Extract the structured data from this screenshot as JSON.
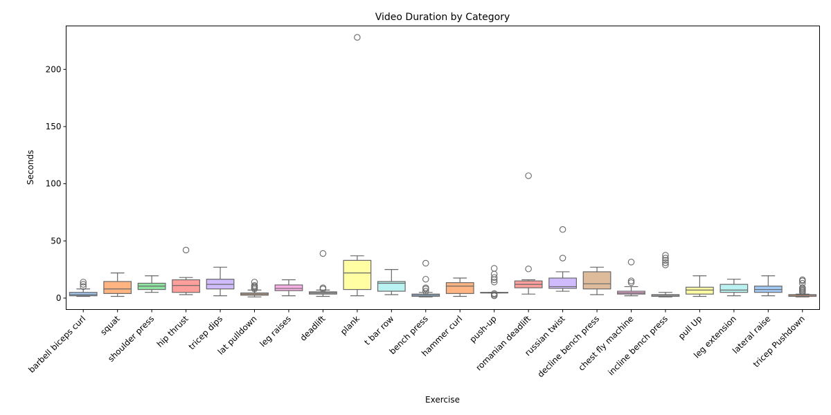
{
  "chart_data": {
    "type": "box",
    "title": "Video Duration by Category",
    "xlabel": "Exercise",
    "ylabel": "Seconds",
    "ylim": [
      -10,
      238
    ],
    "yticks": [
      0,
      50,
      100,
      150,
      200
    ],
    "grid": false,
    "legend": "none",
    "categories": [
      "barbell biceps curl",
      "squat",
      "shoulder press",
      "hip thrust",
      "tricep dips",
      "lat pulldown",
      "leg raises",
      "deadlift",
      "plank",
      "t bar row",
      "bench press",
      "hammer curl",
      "push-up",
      "romanian deadlift",
      "russian twist",
      "decline bench press",
      "chest fly machine",
      "incline bench press",
      "pull Up",
      "leg extension",
      "lateral raise",
      "tricep Pushdown"
    ],
    "colors": [
      "#a1c9f4",
      "#ffb482",
      "#8de5a1",
      "#ff9f9b",
      "#d0bbff",
      "#debb9b",
      "#fab0e4",
      "#cfcfcf",
      "#fffea3",
      "#b9f2f0",
      "#a1c9f4",
      "#ffb482",
      "#8de5a1",
      "#ff9f9b",
      "#d0bbff",
      "#debb9b",
      "#fab0e4",
      "#cfcfcf",
      "#fffea3",
      "#b9f2f0",
      "#a1c9f4",
      "#ffb482"
    ],
    "boxes": [
      {
        "whisker_low": 1.5,
        "q1": 2,
        "median": 3,
        "q3": 5,
        "whisker_high": 8,
        "outliers": [
          10,
          12,
          14
        ]
      },
      {
        "whisker_low": 1.5,
        "q1": 4,
        "median": 8,
        "q3": 14.5,
        "whisker_high": 22,
        "outliers": []
      },
      {
        "whisker_low": 5,
        "q1": 7.5,
        "median": 10.5,
        "q3": 13,
        "whisker_high": 19.5,
        "outliers": []
      },
      {
        "whisker_low": 3,
        "q1": 5,
        "median": 11,
        "q3": 16,
        "whisker_high": 18,
        "outliers": [
          42
        ]
      },
      {
        "whisker_low": 2,
        "q1": 8,
        "median": 12,
        "q3": 16.5,
        "whisker_high": 27,
        "outliers": []
      },
      {
        "whisker_low": 1,
        "q1": 2.5,
        "median": 3.5,
        "q3": 4.5,
        "whisker_high": 7,
        "outliers": [
          8,
          9,
          10,
          11,
          14
        ]
      },
      {
        "whisker_low": 2,
        "q1": 6.5,
        "median": 8.5,
        "q3": 11.5,
        "whisker_high": 16,
        "outliers": []
      },
      {
        "whisker_low": 1.5,
        "q1": 3.5,
        "median": 4.5,
        "q3": 5.5,
        "whisker_high": 7,
        "outliers": [
          8,
          9,
          39
        ]
      },
      {
        "whisker_low": 2,
        "q1": 7.5,
        "median": 22,
        "q3": 33,
        "whisker_high": 37,
        "outliers": [
          228
        ]
      },
      {
        "whisker_low": 3,
        "q1": 6,
        "median": 13,
        "q3": 14.5,
        "whisker_high": 25,
        "outliers": []
      },
      {
        "whisker_low": 1,
        "q1": 1.5,
        "median": 2.5,
        "q3": 3.5,
        "whisker_high": 5,
        "outliers": [
          6,
          8,
          9,
          16.5,
          30.5
        ]
      },
      {
        "whisker_low": 1.5,
        "q1": 4,
        "median": 10.5,
        "q3": 13.5,
        "whisker_high": 17.5,
        "outliers": []
      },
      {
        "whisker_low": 4.5,
        "q1": 4.5,
        "median": 4.5,
        "q3": 5,
        "whisker_high": 5,
        "outliers": [
          2,
          3,
          4,
          14,
          16,
          18,
          21,
          26
        ]
      },
      {
        "whisker_low": 3.5,
        "q1": 9,
        "median": 12,
        "q3": 15,
        "whisker_high": 16,
        "outliers": [
          25.5,
          107
        ]
      },
      {
        "whisker_low": 6,
        "q1": 8.5,
        "median": 10,
        "q3": 17.5,
        "whisker_high": 23,
        "outliers": [
          35,
          60
        ]
      },
      {
        "whisker_low": 3,
        "q1": 8,
        "median": 12.5,
        "q3": 23,
        "whisker_high": 27,
        "outliers": []
      },
      {
        "whisker_low": 2,
        "q1": 3.5,
        "median": 4.5,
        "q3": 6,
        "whisker_high": 10,
        "outliers": [
          13.5,
          15,
          31.5
        ]
      },
      {
        "whisker_low": 1,
        "q1": 1.5,
        "median": 2.5,
        "q3": 3,
        "whisker_high": 5,
        "outliers": [
          29,
          31,
          33,
          35,
          37.5
        ]
      },
      {
        "whisker_low": 1.5,
        "q1": 3.5,
        "median": 7,
        "q3": 9.5,
        "whisker_high": 19.5,
        "outliers": []
      },
      {
        "whisker_low": 2,
        "q1": 5,
        "median": 7,
        "q3": 12,
        "whisker_high": 16.5,
        "outliers": []
      },
      {
        "whisker_low": 2,
        "q1": 5,
        "median": 7.5,
        "q3": 10.5,
        "whisker_high": 19.5,
        "outliers": []
      },
      {
        "whisker_low": 1,
        "q1": 1.5,
        "median": 2.5,
        "q3": 3,
        "whisker_high": 3.5,
        "outliers": [
          5,
          6,
          7,
          8,
          9,
          13,
          15,
          16
        ]
      }
    ]
  }
}
